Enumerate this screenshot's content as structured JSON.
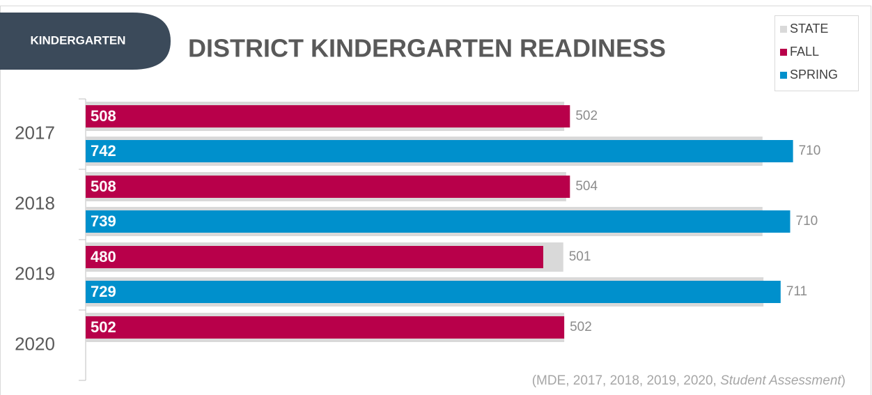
{
  "chart_data": {
    "type": "bar",
    "title": "DISTRICT KINDERGARTEN READINESS",
    "badge": "KINDERGARTEN",
    "categories": [
      "2017",
      "2018",
      "2019",
      "2020"
    ],
    "state_series": {
      "name": "STATE",
      "color": "#d9d9d9"
    },
    "series": [
      {
        "name": "FALL",
        "color": "#b8004a",
        "values": [
          508,
          508,
          480,
          502
        ],
        "state_values": [
          502,
          504,
          501,
          502
        ]
      },
      {
        "name": "SPRING",
        "color": "#0090cc",
        "values": [
          742,
          739,
          729,
          null
        ],
        "state_values": [
          710,
          710,
          711,
          null
        ]
      }
    ],
    "xlim": [
      0,
      800
    ],
    "source": {
      "text": "(MDE, 2017, 2018, 2019, 2020, ",
      "italic": "Student Assessment",
      "end": ")"
    }
  }
}
